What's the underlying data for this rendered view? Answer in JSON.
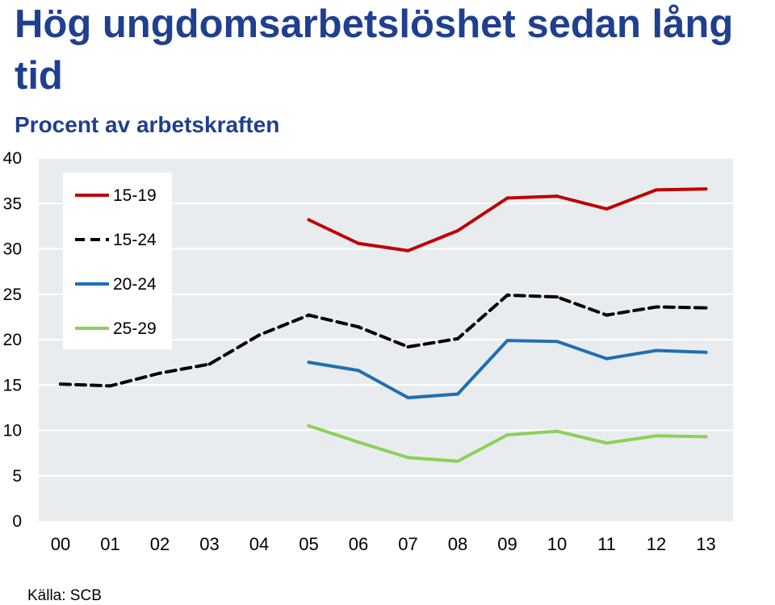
{
  "chart_data": {
    "type": "line",
    "title": "Hög ungdomsarbetslöshet sedan lång tid",
    "subtitle": "Procent av arbetskraften",
    "source": "Källa: SCB",
    "xlabel": "",
    "ylabel": "",
    "ylim": [
      0,
      40
    ],
    "yticks": [
      "0",
      "5",
      "10",
      "15",
      "20",
      "25",
      "30",
      "35",
      "40"
    ],
    "categories": [
      "00",
      "01",
      "02",
      "03",
      "04",
      "05",
      "06",
      "07",
      "08",
      "09",
      "10",
      "11",
      "12",
      "13"
    ],
    "grid": true,
    "legend_position": "top-left",
    "series": [
      {
        "name": "15-19",
        "color": "#c00000",
        "dash": "solid",
        "values": [
          null,
          null,
          null,
          null,
          null,
          33.2,
          30.6,
          29.8,
          32.0,
          35.6,
          35.8,
          34.4,
          36.5,
          36.6
        ]
      },
      {
        "name": "15-24",
        "color": "#000000",
        "dash": "dashed",
        "values": [
          15.1,
          14.9,
          16.3,
          17.3,
          20.5,
          22.7,
          21.4,
          19.2,
          20.1,
          24.9,
          24.7,
          22.7,
          23.6,
          23.5
        ]
      },
      {
        "name": "20-24",
        "color": "#1f6fb2",
        "dash": "solid",
        "values": [
          null,
          null,
          null,
          null,
          null,
          17.5,
          16.6,
          13.6,
          14.0,
          19.9,
          19.8,
          17.9,
          18.8,
          18.6
        ]
      },
      {
        "name": "25-29",
        "color": "#8cd05a",
        "dash": "solid",
        "values": [
          null,
          null,
          null,
          null,
          null,
          10.5,
          8.7,
          7.0,
          6.6,
          9.5,
          9.9,
          8.6,
          9.4,
          9.3
        ]
      }
    ]
  }
}
